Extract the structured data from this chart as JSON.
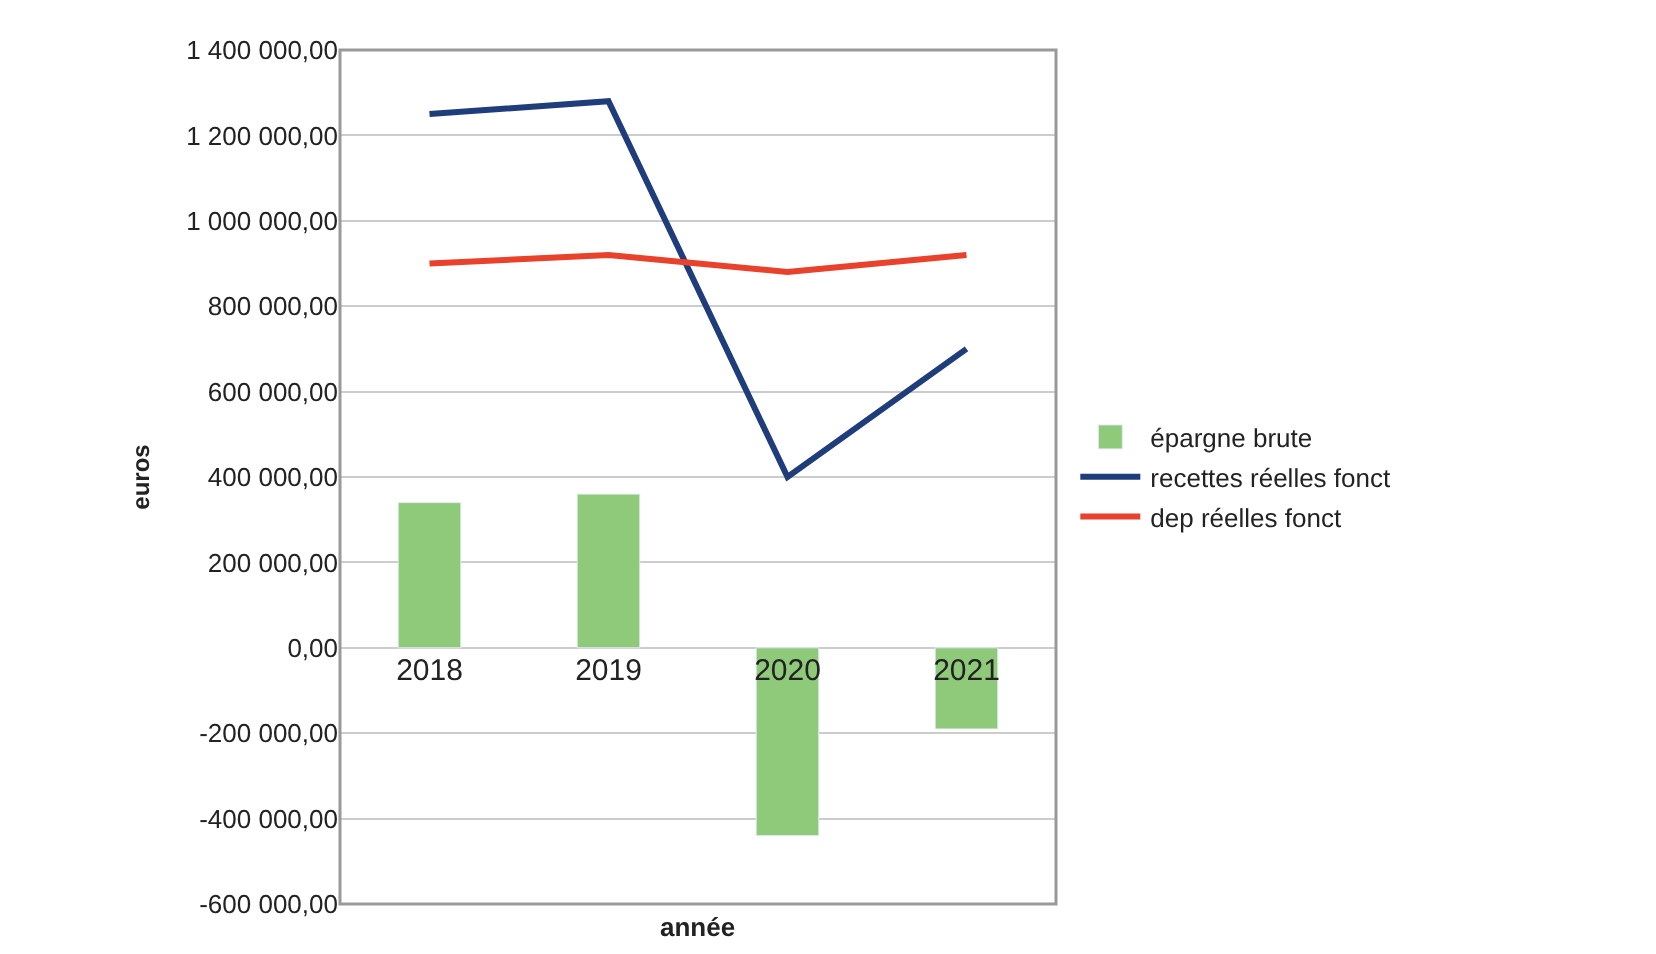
{
  "chart_data": {
    "type": "bar",
    "xlabel": "année",
    "ylabel": "euros",
    "categories": [
      "2018",
      "2019",
      "2020",
      "2021"
    ],
    "series": [
      {
        "name": "épargne brute",
        "color": "#8fc97a",
        "values": [
          340000,
          360000,
          -440000,
          -190000
        ]
      },
      {
        "name": "recettes réelles fonct",
        "type": "line",
        "color": "#1f3d7a",
        "values": [
          1250000,
          1280000,
          400000,
          700000
        ]
      },
      {
        "name": "dep réelles fonct",
        "type": "line",
        "color": "#e8412c",
        "values": [
          900000,
          920000,
          880000,
          920000
        ]
      }
    ],
    "ylim": [
      -600000,
      1400000
    ],
    "yticks": [
      {
        "value": -600000,
        "label": "-600 000,00"
      },
      {
        "value": -400000,
        "label": "-400 000,00"
      },
      {
        "value": -200000,
        "label": "-200 000,00"
      },
      {
        "value": 0,
        "label": "0,00"
      },
      {
        "value": 200000,
        "label": "200 000,00"
      },
      {
        "value": 400000,
        "label": "400 000,00"
      },
      {
        "value": 600000,
        "label": "600 000,00"
      },
      {
        "value": 800000,
        "label": "800 000,00"
      },
      {
        "value": 1000000,
        "label": "1 000 000,00"
      },
      {
        "value": 1200000,
        "label": "1 200 000,00"
      },
      {
        "value": 1400000,
        "label": "1 400 000,00"
      }
    ],
    "grid": "y",
    "legend": "right",
    "marker": "none",
    "line_style": "solid"
  }
}
